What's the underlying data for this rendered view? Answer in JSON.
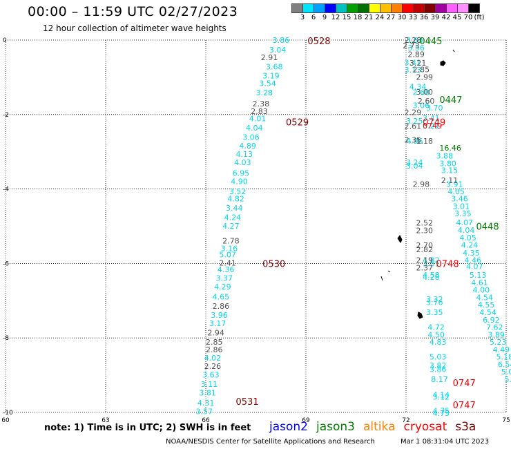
{
  "header": {
    "title": "00:00 – 11:59 UTC 02/27/2023",
    "subtitle": "12 hour collection of altimeter wave heights"
  },
  "colorbar": {
    "colors": [
      "#808080",
      "#00e5ff",
      "#00a0ff",
      "#0000ff",
      "#00c0c0",
      "#00a000",
      "#007000",
      "#ffff00",
      "#ffc000",
      "#ff8000",
      "#ff0000",
      "#c00000",
      "#800000",
      "#a000a0",
      "#ff60ff",
      "#ff90ff",
      "#000000"
    ],
    "ticks": [
      "3",
      "6",
      "9",
      "12",
      "15",
      "18",
      "21",
      "24",
      "27",
      "30",
      "33",
      "36",
      "39",
      "42",
      "45",
      "70",
      "(ft)"
    ]
  },
  "axes": {
    "x_ticks": [
      "60",
      "63",
      "66",
      "69",
      "72",
      "75"
    ],
    "y_ticks": [
      "0",
      "-2",
      "-4",
      "-6",
      "-8",
      "-10"
    ]
  },
  "chart_data": {
    "type": "scatter",
    "title": "00:00 – 11:59 UTC 02/27/2023",
    "xlim": [
      60,
      75
    ],
    "ylim": [
      -10,
      0
    ],
    "grid": true,
    "pass_labels": [
      {
        "text": "0528",
        "lon": 69.05,
        "lat": -0.02,
        "color": "#800000"
      },
      {
        "text": "0529",
        "lon": 68.4,
        "lat": -2.2,
        "color": "#800000"
      },
      {
        "text": "0530",
        "lon": 67.7,
        "lat": -6.0,
        "color": "#800000"
      },
      {
        "text": "0531",
        "lon": 66.9,
        "lat": -9.7,
        "color": "#800000"
      },
      {
        "text": "0445",
        "lon": 72.4,
        "lat": -0.02,
        "color": "#008000"
      },
      {
        "text": "0447",
        "lon": 73.0,
        "lat": -1.6,
        "color": "#008000"
      },
      {
        "text": "0448",
        "lon": 74.1,
        "lat": -5.0,
        "color": "#008000"
      },
      {
        "text": "0749",
        "lon": 72.5,
        "lat": -2.2,
        "color": "#ff0000"
      },
      {
        "text": "0748",
        "lon": 72.9,
        "lat": -6.0,
        "color": "#ff0000"
      },
      {
        "text": "0747",
        "lon": 73.4,
        "lat": -9.2,
        "color": "#ff0000"
      },
      {
        "text": "0747",
        "lon": 73.4,
        "lat": -9.8,
        "color": "#ff0000"
      }
    ],
    "series": [
      {
        "color": "#00d8e8",
        "points": [
          [
            68.0,
            0.0,
            "3.86"
          ],
          [
            67.9,
            -0.26,
            "3.04"
          ],
          [
            67.8,
            -0.71,
            "3.68"
          ],
          [
            67.7,
            -0.96,
            "3.19"
          ],
          [
            67.6,
            -1.16,
            "3.54"
          ],
          [
            67.5,
            -1.41,
            "3.28"
          ],
          [
            67.3,
            -2.11,
            "4.01"
          ],
          [
            67.2,
            -2.36,
            "4.04"
          ],
          [
            67.1,
            -2.61,
            "3.06"
          ],
          [
            67.0,
            -2.84,
            "4.89"
          ],
          [
            66.9,
            -3.06,
            "4.13"
          ],
          [
            66.85,
            -3.28,
            "4.03"
          ],
          [
            66.8,
            -3.57,
            "6.95"
          ],
          [
            66.75,
            -3.79,
            "4.90"
          ],
          [
            66.7,
            -4.06,
            "3.52"
          ],
          [
            66.65,
            -4.26,
            "4.82"
          ],
          [
            66.6,
            -4.51,
            "3.44"
          ],
          [
            66.55,
            -4.76,
            "4.24"
          ],
          [
            66.5,
            -4.99,
            "4.27"
          ],
          [
            66.45,
            -5.59,
            "3.16"
          ],
          [
            66.4,
            -5.76,
            "5.07"
          ],
          [
            66.35,
            -6.16,
            "4.36"
          ],
          [
            66.3,
            -6.39,
            "3.37"
          ],
          [
            66.25,
            -6.62,
            "4.29"
          ],
          [
            66.2,
            -6.89,
            "4.65"
          ],
          [
            66.15,
            -7.38,
            "3.96"
          ],
          [
            66.1,
            -7.61,
            "3.17"
          ],
          [
            65.95,
            -8.53,
            "4.02"
          ],
          [
            65.9,
            -8.99,
            "3.63"
          ],
          [
            65.85,
            -9.24,
            "3.11"
          ],
          [
            65.8,
            -9.47,
            "3.81"
          ],
          [
            65.75,
            -9.74,
            "4.31"
          ],
          [
            65.7,
            -9.97,
            "3.57"
          ],
          [
            72.0,
            0.0,
            "3.64"
          ],
          [
            72.05,
            -0.2,
            "3.56"
          ],
          [
            71.95,
            -0.6,
            "3.41"
          ],
          [
            71.95,
            -0.8,
            "3.13"
          ],
          [
            72.1,
            -1.25,
            "4.34"
          ],
          [
            72.2,
            -1.4,
            "2.68"
          ],
          [
            72.2,
            -1.75,
            "3.06"
          ],
          [
            72.6,
            -1.82,
            "3.70"
          ],
          [
            72.5,
            -2.1,
            "3.41"
          ],
          [
            72.0,
            -2.17,
            "3.25"
          ],
          [
            72.5,
            -2.3,
            "3.21"
          ],
          [
            72.0,
            -2.71,
            "4.96"
          ],
          [
            72.0,
            -3.28,
            "3.24"
          ],
          [
            72.0,
            -3.38,
            "3.04"
          ],
          [
            72.9,
            -3.11,
            "3.88"
          ],
          [
            73.0,
            -3.31,
            "3.80"
          ],
          [
            73.05,
            -3.5,
            "3.15"
          ],
          [
            73.2,
            -3.87,
            "3.91"
          ],
          [
            73.25,
            -4.06,
            "4.05"
          ],
          [
            73.35,
            -4.26,
            "3.46"
          ],
          [
            73.4,
            -4.46,
            "3.01"
          ],
          [
            73.45,
            -4.66,
            "3.35"
          ],
          [
            73.5,
            -4.9,
            "4.07"
          ],
          [
            73.55,
            -5.1,
            "4.04"
          ],
          [
            73.6,
            -5.31,
            "4.05"
          ],
          [
            73.65,
            -5.5,
            "4.24"
          ],
          [
            73.7,
            -5.71,
            "4.35"
          ],
          [
            73.75,
            -5.91,
            "4.46"
          ],
          [
            73.8,
            -6.08,
            "4.07"
          ],
          [
            73.9,
            -6.31,
            "5.13"
          ],
          [
            73.95,
            -6.51,
            "4.61"
          ],
          [
            74.0,
            -6.71,
            "4.00"
          ],
          [
            74.1,
            -6.91,
            "4.54"
          ],
          [
            74.15,
            -7.11,
            "4.55"
          ],
          [
            74.2,
            -7.31,
            "4.54"
          ],
          [
            74.3,
            -7.51,
            "6.92"
          ],
          [
            74.4,
            -7.71,
            "7.62"
          ],
          [
            74.45,
            -7.91,
            "3.89"
          ],
          [
            74.5,
            -8.11,
            "5.23"
          ],
          [
            74.6,
            -8.31,
            "4.49"
          ],
          [
            74.7,
            -8.51,
            "5.18"
          ],
          [
            74.75,
            -8.71,
            "6.54"
          ],
          [
            74.85,
            -8.91,
            "5.0"
          ],
          [
            74.95,
            -9.11,
            "5.0"
          ],
          [
            72.5,
            -5.91,
            "4.82"
          ],
          [
            72.5,
            -6.0,
            "3.51"
          ],
          [
            72.5,
            -6.31,
            "4.58"
          ],
          [
            72.5,
            -6.36,
            "4.28"
          ],
          [
            72.6,
            -6.96,
            "3.32"
          ],
          [
            72.6,
            -7.04,
            "3.76"
          ],
          [
            72.6,
            -7.31,
            "3.35"
          ],
          [
            72.65,
            -7.71,
            "4.72"
          ],
          [
            72.65,
            -7.91,
            "4.50"
          ],
          [
            72.7,
            -8.11,
            "4.83"
          ],
          [
            72.7,
            -8.51,
            "5.03"
          ],
          [
            72.7,
            -8.74,
            "3.82"
          ],
          [
            72.7,
            -8.84,
            "3.86"
          ],
          [
            72.75,
            -9.11,
            "8.17"
          ],
          [
            72.8,
            -9.53,
            "4.14"
          ],
          [
            72.8,
            -9.58,
            "3.12"
          ],
          [
            72.8,
            -9.95,
            "4.75"
          ],
          [
            72.8,
            -10.02,
            "4.75"
          ]
        ]
      },
      {
        "color": "#505050",
        "points": [
          [
            67.65,
            -0.46,
            "2.91"
          ],
          [
            67.4,
            -1.71,
            "2.38"
          ],
          [
            67.35,
            -1.91,
            "2.83"
          ],
          [
            66.5,
            -5.39,
            "2.78"
          ],
          [
            66.4,
            -5.98,
            "2.41"
          ],
          [
            66.2,
            -7.14,
            "2.86"
          ],
          [
            66.05,
            -7.86,
            "2.94"
          ],
          [
            66.0,
            -8.11,
            "2.85"
          ],
          [
            66.0,
            -8.31,
            "2.86"
          ],
          [
            65.95,
            -8.76,
            "2.26"
          ],
          [
            71.95,
            0.0,
            "2.28"
          ],
          [
            71.9,
            -0.15,
            "2.73"
          ],
          [
            72.05,
            -0.38,
            "2.89"
          ],
          [
            72.1,
            -0.61,
            "3.21"
          ],
          [
            72.2,
            -0.79,
            "2.85"
          ],
          [
            72.3,
            -0.99,
            "2.99"
          ],
          [
            72.3,
            -1.39,
            "3.00"
          ],
          [
            72.35,
            -1.63,
            "2.60"
          ],
          [
            71.95,
            -1.94,
            "2.29"
          ],
          [
            71.95,
            -2.31,
            "2.61"
          ],
          [
            72.3,
            -2.71,
            "1.18"
          ],
          [
            71.95,
            -2.68,
            "2.35"
          ],
          [
            72.2,
            -3.87,
            "2.98"
          ],
          [
            72.3,
            -4.91,
            "2.52"
          ],
          [
            72.3,
            -5.11,
            "2.30"
          ],
          [
            72.3,
            -5.51,
            "2.70"
          ],
          [
            72.3,
            -5.62,
            "2.82"
          ],
          [
            72.3,
            -5.91,
            "2.19"
          ],
          [
            72.3,
            -6.11,
            "2.37"
          ],
          [
            73.05,
            -3.77,
            "2.11"
          ]
        ]
      },
      {
        "color": "#008000",
        "points": [
          [
            73.0,
            -2.89,
            "16.46"
          ]
        ]
      },
      {
        "color": "#ff0000",
        "points": [
          [
            72.5,
            -2.3,
            "0749"
          ]
        ]
      }
    ]
  },
  "note": "note:  1) Time is in UTC;  2) SWH is in feet",
  "satellites": [
    {
      "name": "jason2",
      "color": "#0000ff"
    },
    {
      "name": "jason3",
      "color": "#008000"
    },
    {
      "name": "altika",
      "color": "#ff8000"
    },
    {
      "name": "cryosat",
      "color": "#ff0000"
    },
    {
      "name": "s3a",
      "color": "#800000"
    }
  ],
  "footer": {
    "credit": "NOAA/NESDIS Center for Satellite Applications and Research",
    "datestamp": "Mar  1 08:31:04 UTC 2023"
  }
}
